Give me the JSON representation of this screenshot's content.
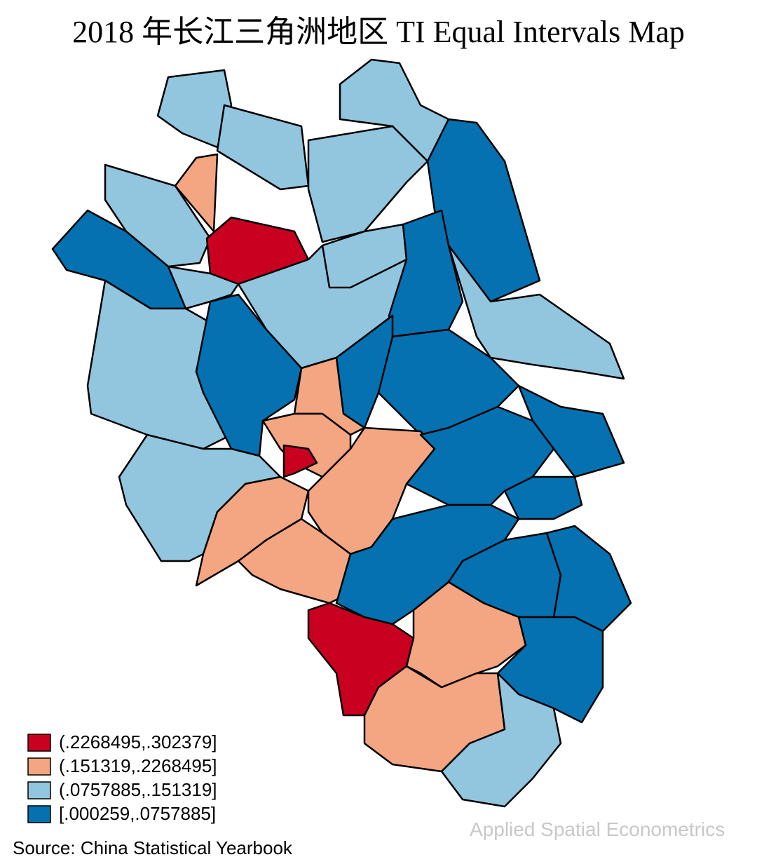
{
  "title": "2018 年长江三角洲地区 TI Equal Intervals Map",
  "legend": [
    {
      "label": "(.2268495,.302379]",
      "color": "#ca0020"
    },
    {
      "label": "(.151319,.2268495]",
      "color": "#f4a582"
    },
    {
      "label": "(.0757885,.151319]",
      "color": "#92c5de"
    },
    {
      "label": "[.000259,.0757885]",
      "color": "#0571b0"
    }
  ],
  "source": "Source: China Statistical Yearbook",
  "watermark": "Applied Spatial Econometrics"
}
